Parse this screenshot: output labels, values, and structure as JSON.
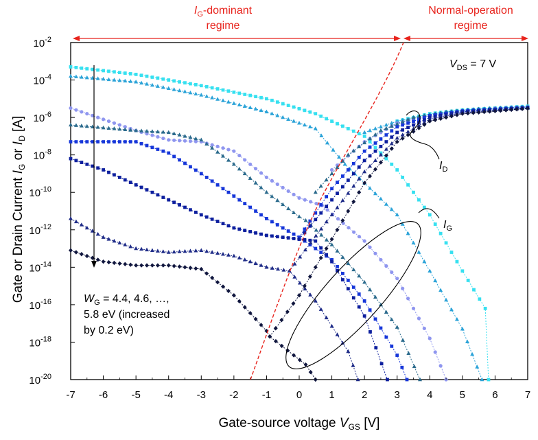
{
  "chart_data": {
    "type": "scatter",
    "title": "",
    "xlabel": "Gate-source voltage",
    "xlabel_symbol": "V",
    "xlabel_sub": "GS",
    "xlabel_unit": "[V]",
    "ylabel": "Gate or Drain Current",
    "ylabel_sym1": "I",
    "ylabel_sub1": "G",
    "ylabel_or": "or",
    "ylabel_sym2": "I",
    "ylabel_sub2": "D",
    "ylabel_unit": "[A]",
    "xlim": [
      -7,
      7
    ],
    "ylim_exp": [
      -20,
      -2
    ],
    "x_ticks": [
      "-7",
      "-6",
      "-5",
      "-4",
      "-3",
      "-2",
      "-1",
      "0",
      "1",
      "2",
      "3",
      "4",
      "5",
      "6",
      "7"
    ],
    "y_tick_base": "10",
    "y_tick_exps": [
      "-2",
      "-4",
      "-6",
      "-8",
      "-10",
      "-12",
      "-14",
      "-16",
      "-18",
      "-20"
    ],
    "regime_left_sym": "I",
    "regime_left_sub": "G",
    "regime_left_rest": "-dominant",
    "regime_left_line2": "regime",
    "regime_right_line1": "Normal-operation",
    "regime_right_line2": "regime",
    "vds_sym": "V",
    "vds_sub": "DS",
    "vds_value": " = 7 V",
    "id_sym": "I",
    "id_sub": "D",
    "ig_sym": "I",
    "ig_sub": "G",
    "wg_sym": "W",
    "wg_sub": "G",
    "wg_line1_rest": " = 4.4, 4.6, …,",
    "wg_line2": "5.8 eV (increased",
    "wg_line3": "by 0.2 eV)",
    "series": [
      {
        "name": "WG = 4.4 eV",
        "color": "#36e0f0",
        "gate": [
          [
            -7,
            -3.3
          ],
          [
            -5,
            -3.7
          ],
          [
            -3,
            -4.3
          ],
          [
            -1,
            -5
          ],
          [
            0.5,
            -5.8
          ],
          [
            2,
            -7.0
          ],
          [
            3,
            -8.8
          ],
          [
            4,
            -11.2
          ],
          [
            5,
            -14.2
          ],
          [
            5.7,
            -16.2
          ],
          [
            5.8,
            -20
          ]
        ],
        "drain": [
          [
            3,
            -6.2
          ],
          [
            4,
            -5.8
          ],
          [
            5,
            -5.6
          ],
          [
            6,
            -5.5
          ],
          [
            7,
            -5.4
          ]
        ]
      },
      {
        "name": "WG = 4.6 eV",
        "color": "#2ba3d8",
        "gate": [
          [
            -7,
            -3.8
          ],
          [
            -5,
            -4.1
          ],
          [
            -3,
            -4.8
          ],
          [
            -1,
            -5.7
          ],
          [
            0.5,
            -6.6
          ],
          [
            1.4,
            -8.5
          ],
          [
            2,
            -9.5
          ],
          [
            3,
            -11.2
          ],
          [
            4,
            -14.2
          ],
          [
            5,
            -17.3
          ],
          [
            5.6,
            -20
          ]
        ],
        "drain": [
          [
            2,
            -6.8
          ],
          [
            3,
            -6.2
          ],
          [
            4,
            -5.85
          ],
          [
            5,
            -5.62
          ],
          [
            6,
            -5.5
          ],
          [
            7,
            -5.42
          ]
        ]
      },
      {
        "name": "WG = 4.8 eV",
        "color": "#8f96ef",
        "gate": [
          [
            -7,
            -5.5
          ],
          [
            -6,
            -6.1
          ],
          [
            -5,
            -6.7
          ],
          [
            -4,
            -7.2
          ],
          [
            -3,
            -7.3
          ],
          [
            -2,
            -7.8
          ],
          [
            -1,
            -9.2
          ],
          [
            0,
            -10.3
          ],
          [
            0.7,
            -10.7
          ],
          [
            2,
            -12.6
          ],
          [
            3,
            -14.6
          ],
          [
            4,
            -17.8
          ],
          [
            4.5,
            -20
          ]
        ],
        "drain": [
          [
            1,
            -8.8
          ],
          [
            2,
            -7.3
          ],
          [
            3,
            -6.3
          ],
          [
            4,
            -5.9
          ],
          [
            5,
            -5.65
          ],
          [
            6,
            -5.52
          ],
          [
            7,
            -5.44
          ]
        ]
      },
      {
        "name": "WG = 5.0 eV",
        "color": "#2a6a8c",
        "gate": [
          [
            -7,
            -6.4
          ],
          [
            -5,
            -6.7
          ],
          [
            -4,
            -6.8
          ],
          [
            -3,
            -7.2
          ],
          [
            -2,
            -8.5
          ],
          [
            -1,
            -10
          ],
          [
            0,
            -11.3
          ],
          [
            0.2,
            -11.5
          ],
          [
            1,
            -12.8
          ],
          [
            2,
            -14.8
          ],
          [
            3,
            -17.2
          ],
          [
            3.7,
            -20
          ]
        ],
        "drain": [
          [
            0.5,
            -10
          ],
          [
            1.5,
            -8
          ],
          [
            2.5,
            -6.7
          ],
          [
            3.5,
            -6.0
          ],
          [
            4.5,
            -5.7
          ],
          [
            5.5,
            -5.55
          ],
          [
            7,
            -5.45
          ]
        ]
      },
      {
        "name": "WG = 5.2 eV",
        "color": "#1636d9",
        "gate": [
          [
            -7,
            -7.3
          ],
          [
            -5,
            -7.3
          ],
          [
            -4,
            -7.9
          ],
          [
            -3,
            -9
          ],
          [
            -2,
            -10.2
          ],
          [
            -1,
            -11.4
          ],
          [
            0,
            -12.4
          ],
          [
            1,
            -13.6
          ],
          [
            2,
            -15.8
          ],
          [
            3,
            -18.7
          ],
          [
            3.3,
            -20
          ]
        ],
        "drain": [
          [
            0,
            -12.4
          ],
          [
            1,
            -9.8
          ],
          [
            2,
            -7.8
          ],
          [
            3,
            -6.5
          ],
          [
            4,
            -5.9
          ],
          [
            5,
            -5.65
          ],
          [
            7,
            -5.46
          ]
        ]
      },
      {
        "name": "WG = 5.4 eV",
        "color": "#0d1f9e",
        "gate": [
          [
            -7,
            -8.2
          ],
          [
            -6,
            -8.8
          ],
          [
            -5,
            -9.6
          ],
          [
            -4,
            -10.4
          ],
          [
            -3,
            -11.2
          ],
          [
            -2,
            -11.9
          ],
          [
            -1,
            -12.3
          ],
          [
            0,
            -12.5
          ],
          [
            0.5,
            -12.6
          ],
          [
            1,
            -13.7
          ],
          [
            2,
            -16.6
          ],
          [
            2.7,
            -20
          ]
        ],
        "drain": [
          [
            0,
            -12.5
          ],
          [
            1,
            -10.4
          ],
          [
            2,
            -8.3
          ],
          [
            3,
            -6.8
          ],
          [
            4,
            -6.0
          ],
          [
            5,
            -5.7
          ],
          [
            7,
            -5.48
          ]
        ]
      },
      {
        "name": "WG = 5.6 eV",
        "color": "#1f2c88",
        "gate": [
          [
            -7,
            -11.4
          ],
          [
            -6,
            -12.4
          ],
          [
            -5,
            -13.0
          ],
          [
            -4,
            -13.2
          ],
          [
            -3,
            -13.1
          ],
          [
            -2,
            -13.4
          ],
          [
            -1,
            -14.0
          ],
          [
            -0.3,
            -14.2
          ],
          [
            0.5,
            -15.8
          ],
          [
            1.5,
            -18.5
          ],
          [
            1.8,
            -20
          ]
        ],
        "drain": [
          [
            -0.3,
            -14.2
          ],
          [
            1,
            -11.2
          ],
          [
            2,
            -8.9
          ],
          [
            3,
            -7.1
          ],
          [
            4,
            -6.1
          ],
          [
            5,
            -5.75
          ],
          [
            7,
            -5.5
          ]
        ]
      },
      {
        "name": "WG = 5.8 eV",
        "color": "#10163e",
        "gate": [
          [
            -7,
            -13.1
          ],
          [
            -6,
            -13.7
          ],
          [
            -5,
            -13.9
          ],
          [
            -4,
            -13.9
          ],
          [
            -3,
            -14.1
          ],
          [
            -2,
            -15.5
          ],
          [
            -1,
            -17.4
          ],
          [
            -0.9,
            -17.7
          ],
          [
            0.2,
            -19.2
          ],
          [
            0.5,
            -20
          ]
        ],
        "drain": [
          [
            -0.9,
            -17.7
          ],
          [
            0,
            -15.5
          ],
          [
            1,
            -12.5
          ],
          [
            2,
            -9.5
          ],
          [
            3,
            -7.3
          ],
          [
            4,
            -6.2
          ],
          [
            5,
            -5.8
          ],
          [
            7,
            -5.52
          ]
        ]
      }
    ]
  }
}
